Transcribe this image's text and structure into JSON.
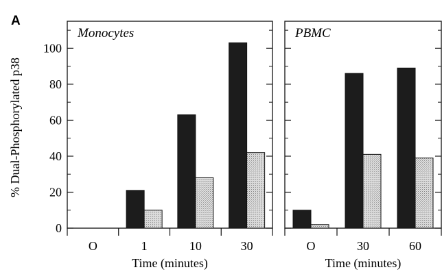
{
  "figure": {
    "panel_letter": "A"
  },
  "colors": {
    "black_bar": "#1c1c1c",
    "gray_bar": "#d4d4d4",
    "frame": "#111111"
  },
  "chart_data": [
    {
      "type": "bar",
      "title": "Monocytes",
      "categories": [
        "O",
        "1",
        "10",
        "30"
      ],
      "series": [
        {
          "color": "black",
          "values": [
            0,
            21,
            63,
            103
          ]
        },
        {
          "color": "stippled-gray",
          "values": [
            0,
            10,
            28,
            42
          ]
        }
      ],
      "xlabel": "Time (minutes)",
      "ylabel": "% Dual-Phosphorylated p38",
      "ylim": [
        0,
        115
      ],
      "yticks": [
        "0",
        "20",
        "40",
        "60",
        "80",
        "100"
      ],
      "grid": false,
      "legend": "none"
    },
    {
      "type": "bar",
      "title": "PBMC",
      "categories": [
        "O",
        "30",
        "60"
      ],
      "series": [
        {
          "color": "black",
          "values": [
            10,
            86,
            89
          ]
        },
        {
          "color": "stippled-gray",
          "values": [
            2,
            41,
            39
          ]
        }
      ],
      "xlabel": "Time (minutes)",
      "ylabel": "",
      "ylim": [
        0,
        115
      ],
      "yticks": [
        "0",
        "20",
        "40",
        "60",
        "80",
        "100"
      ],
      "grid": false,
      "legend": "none"
    }
  ]
}
